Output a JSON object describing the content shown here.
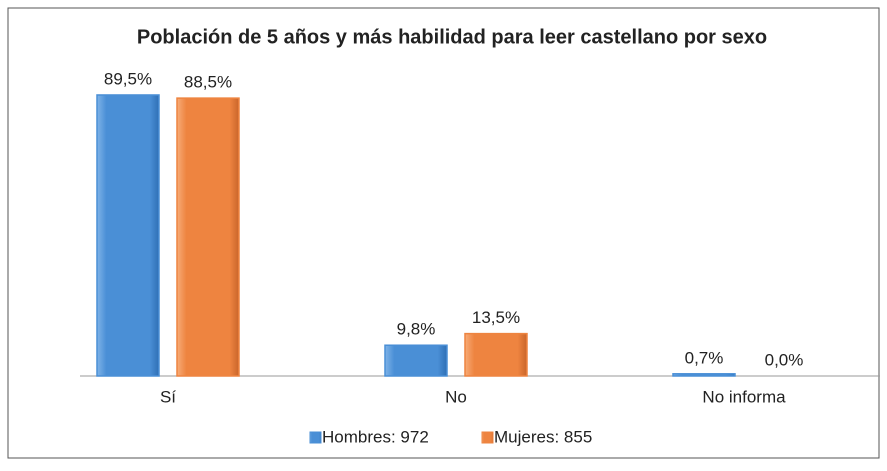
{
  "chart_data": {
    "type": "bar",
    "title": "Población de 5 años y más habilidad para leer castellano por sexo",
    "categories": [
      "Sí",
      "No",
      "No informa"
    ],
    "series": [
      {
        "name": "Hombres: 972",
        "color": "#4a8fd6",
        "values": [
          89.5,
          9.8,
          0.7
        ],
        "value_labels": [
          "89,5%",
          "9,8%",
          "0,7%"
        ]
      },
      {
        "name": "Mujeres: 855",
        "color": "#ee8440",
        "values": [
          88.5,
          13.5,
          0.0
        ],
        "value_labels": [
          "88,5%",
          "13,5%",
          "0,0%"
        ]
      }
    ],
    "legend": "bottom"
  }
}
